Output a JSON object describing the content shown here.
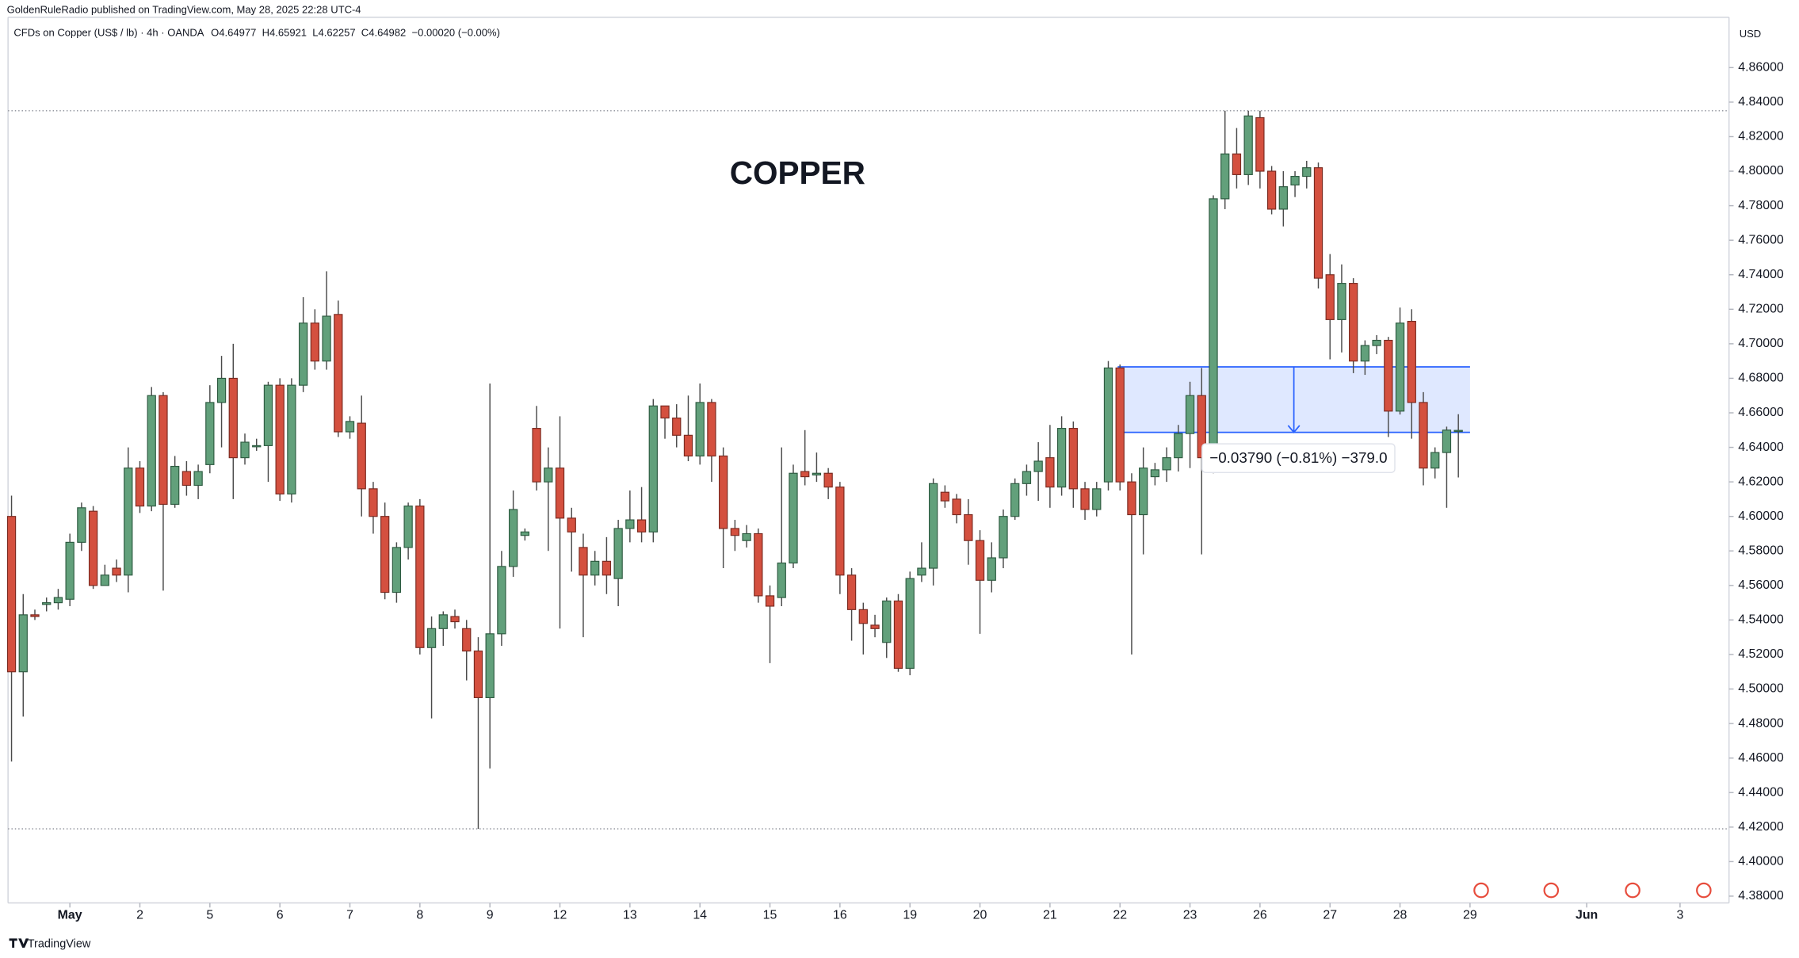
{
  "header": "GoldenRuleRadio published on TradingView.com, May 28, 2025 22:28 UTC-4",
  "footer": "TradingView",
  "chart_data": {
    "type": "candlestick",
    "title": "COPPER",
    "symbol": "CFDs on Copper (US$ / lb) · 4h · OANDA",
    "ohlc_legend": [
      "O4.64977",
      "H4.65921",
      "L4.62257",
      "C4.64982",
      "−0.00020 (−0.00%)"
    ],
    "currency": "USD",
    "up_color": "#62a07b",
    "down_color": "#d4503f",
    "open": [
      4.6,
      4.51,
      4.543,
      4.549,
      4.55,
      4.552,
      4.585,
      4.603,
      4.56,
      4.57,
      4.566,
      4.628,
      4.606,
      4.67,
      4.607,
      4.626,
      4.618,
      4.63,
      4.666,
      4.68,
      4.634,
      4.641,
      4.641,
      4.676,
      4.613,
      4.676,
      4.712,
      4.69,
      4.717,
      4.649,
      4.654,
      4.616,
      4.6,
      4.556,
      4.582,
      4.606,
      4.524,
      4.535,
      4.542,
      4.535,
      4.522,
      4.495,
      4.532,
      4.571,
      4.589,
      4.651,
      4.62,
      4.628,
      4.599,
      4.582,
      4.566,
      4.574,
      4.564,
      4.593,
      4.598,
      4.591,
      4.664,
      4.657,
      4.647,
      4.635,
      4.666,
      4.635,
      4.593,
      4.586,
      4.59,
      4.554,
      4.553,
      4.573,
      4.626,
      4.624,
      4.625,
      4.617,
      4.566,
      4.546,
      4.537,
      4.527,
      4.551,
      4.512,
      4.566,
      4.57,
      4.614,
      4.61,
      4.601,
      4.586,
      4.563,
      4.576,
      4.6,
      4.619,
      4.626,
      4.634,
      4.617,
      4.651,
      4.616,
      4.604,
      4.62,
      4.686,
      4.62,
      4.601,
      4.623,
      4.627,
      4.634,
      4.648,
      4.67,
      4.63,
      4.784,
      4.81,
      4.798,
      4.831,
      4.8,
      4.778,
      4.792,
      4.797,
      4.802,
      4.74,
      4.714,
      4.735,
      4.69,
      4.699,
      4.702,
      4.661,
      4.713,
      4.666,
      4.628,
      4.637,
      4.64977
    ],
    "high": [
      4.612,
      4.555,
      4.546,
      4.553,
      4.558,
      4.59,
      4.608,
      4.606,
      4.572,
      4.575,
      4.64,
      4.632,
      4.675,
      4.672,
      4.635,
      4.632,
      4.63,
      4.676,
      4.693,
      4.7,
      4.648,
      4.645,
      4.678,
      4.68,
      4.68,
      4.727,
      4.72,
      4.742,
      4.725,
      4.658,
      4.67,
      4.62,
      4.608,
      4.585,
      4.608,
      4.61,
      4.542,
      4.545,
      4.546,
      4.54,
      4.53,
      4.677,
      4.58,
      4.615,
      4.593,
      4.664,
      4.64,
      4.658,
      4.605,
      4.59,
      4.58,
      4.588,
      4.598,
      4.615,
      4.617,
      4.668,
      4.662,
      4.665,
      4.67,
      4.677,
      4.668,
      4.64,
      4.598,
      4.595,
      4.593,
      4.56,
      4.64,
      4.63,
      4.65,
      4.637,
      4.628,
      4.62,
      4.57,
      4.55,
      4.543,
      4.553,
      4.555,
      4.568,
      4.585,
      4.622,
      4.618,
      4.613,
      4.61,
      4.592,
      4.585,
      4.604,
      4.622,
      4.63,
      4.643,
      4.653,
      4.658,
      4.655,
      4.62,
      4.62,
      4.69,
      4.688,
      4.625,
      4.64,
      4.631,
      4.64,
      4.653,
      4.678,
      4.686,
      4.786,
      4.835,
      4.825,
      4.835,
      4.835,
      4.803,
      4.8,
      4.8,
      4.806,
      4.805,
      4.752,
      4.746,
      4.738,
      4.702,
      4.705,
      4.704,
      4.721,
      4.72,
      4.672,
      4.64,
      4.652,
      4.65921
    ],
    "low": [
      4.458,
      4.484,
      4.54,
      4.545,
      4.546,
      4.548,
      4.58,
      4.558,
      4.56,
      4.562,
      4.556,
      4.602,
      4.603,
      4.557,
      4.605,
      4.612,
      4.61,
      4.625,
      4.64,
      4.61,
      4.63,
      4.638,
      4.62,
      4.609,
      4.608,
      4.672,
      4.685,
      4.685,
      4.646,
      4.645,
      4.6,
      4.59,
      4.552,
      4.55,
      4.575,
      4.52,
      4.483,
      4.525,
      4.535,
      4.505,
      4.419,
      4.454,
      4.525,
      4.565,
      4.586,
      4.615,
      4.58,
      4.535,
      4.568,
      4.53,
      4.56,
      4.555,
      4.548,
      4.585,
      4.585,
      4.585,
      4.645,
      4.64,
      4.632,
      4.63,
      4.62,
      4.57,
      4.58,
      4.582,
      4.55,
      4.515,
      4.548,
      4.57,
      4.618,
      4.62,
      4.61,
      4.555,
      4.528,
      4.52,
      4.53,
      4.518,
      4.51,
      4.508,
      4.562,
      4.56,
      4.605,
      4.596,
      4.572,
      4.532,
      4.556,
      4.57,
      4.598,
      4.612,
      4.609,
      4.605,
      4.612,
      4.605,
      4.598,
      4.6,
      4.615,
      4.615,
      4.52,
      4.578,
      4.618,
      4.62,
      4.626,
      4.628,
      4.578,
      4.625,
      4.778,
      4.79,
      4.792,
      4.79,
      4.775,
      4.768,
      4.785,
      4.79,
      4.732,
      4.691,
      4.695,
      4.683,
      4.682,
      4.694,
      4.646,
      4.659,
      4.645,
      4.618,
      4.622,
      4.605,
      4.62257
    ],
    "close": [
      4.51,
      4.543,
      4.542,
      4.55,
      4.553,
      4.585,
      4.605,
      4.56,
      4.566,
      4.566,
      4.628,
      4.606,
      4.67,
      4.607,
      4.629,
      4.618,
      4.626,
      4.666,
      4.68,
      4.634,
      4.643,
      4.641,
      4.676,
      4.613,
      4.676,
      4.712,
      4.69,
      4.716,
      4.649,
      4.655,
      4.616,
      4.6,
      4.556,
      4.582,
      4.606,
      4.524,
      4.535,
      4.543,
      4.539,
      4.522,
      4.495,
      4.532,
      4.571,
      4.604,
      4.591,
      4.62,
      4.628,
      4.599,
      4.591,
      4.566,
      4.574,
      4.566,
      4.593,
      4.598,
      4.591,
      4.664,
      4.657,
      4.647,
      4.635,
      4.666,
      4.635,
      4.593,
      4.589,
      4.59,
      4.554,
      4.548,
      4.573,
      4.625,
      4.623,
      4.625,
      4.617,
      4.566,
      4.546,
      4.538,
      4.535,
      4.551,
      4.512,
      4.564,
      4.57,
      4.619,
      4.609,
      4.601,
      4.586,
      4.563,
      4.576,
      4.6,
      4.619,
      4.626,
      4.632,
      4.617,
      4.651,
      4.616,
      4.604,
      4.616,
      4.686,
      4.62,
      4.601,
      4.628,
      4.627,
      4.634,
      4.648,
      4.67,
      4.634,
      4.784,
      4.81,
      4.798,
      4.832,
      4.8,
      4.778,
      4.791,
      4.797,
      4.802,
      4.738,
      4.714,
      4.735,
      4.69,
      4.699,
      4.702,
      4.661,
      4.712,
      4.666,
      4.628,
      4.637,
      4.65,
      4.64982
    ],
    "xlim": [
      -0.3,
      147
    ],
    "xticks": [
      {
        "value": 5,
        "label": "May"
      },
      {
        "value": 11,
        "label": "2"
      },
      {
        "value": 17,
        "label": "5"
      },
      {
        "value": 23,
        "label": "6"
      },
      {
        "value": 29,
        "label": "7"
      },
      {
        "value": 35,
        "label": "8"
      },
      {
        "value": 41,
        "label": "9"
      },
      {
        "value": 47,
        "label": "12"
      },
      {
        "value": 53,
        "label": "13"
      },
      {
        "value": 59,
        "label": "14"
      },
      {
        "value": 65,
        "label": "15"
      },
      {
        "value": 71,
        "label": "16"
      },
      {
        "value": 77,
        "label": "19"
      },
      {
        "value": 83,
        "label": "20"
      },
      {
        "value": 89,
        "label": "21"
      },
      {
        "value": 95,
        "label": "22"
      },
      {
        "value": 101,
        "label": "23"
      },
      {
        "value": 107,
        "label": "26"
      },
      {
        "value": 113,
        "label": "27"
      },
      {
        "value": 119,
        "label": "28"
      },
      {
        "value": 125,
        "label": "29"
      },
      {
        "value": 135,
        "label": "Jun"
      },
      {
        "value": 143,
        "label": "3"
      }
    ],
    "ylim": [
      4.3774,
      4.8892
    ],
    "yticks": [
      {
        "value": 4.38,
        "label": "4.38000"
      },
      {
        "value": 4.4,
        "label": "4.40000"
      },
      {
        "value": 4.42,
        "label": "4.42000"
      },
      {
        "value": 4.44,
        "label": "4.44000"
      },
      {
        "value": 4.46,
        "label": "4.46000"
      },
      {
        "value": 4.48,
        "label": "4.48000"
      },
      {
        "value": 4.5,
        "label": "4.50000"
      },
      {
        "value": 4.52,
        "label": "4.52000"
      },
      {
        "value": 4.54,
        "label": "4.54000"
      },
      {
        "value": 4.56,
        "label": "4.56000"
      },
      {
        "value": 4.58,
        "label": "4.58000"
      },
      {
        "value": 4.6,
        "label": "4.60000"
      },
      {
        "value": 4.62,
        "label": "4.62000"
      },
      {
        "value": 4.64,
        "label": "4.64000"
      },
      {
        "value": 4.66,
        "label": "4.66000"
      },
      {
        "value": 4.68,
        "label": "4.68000"
      },
      {
        "value": 4.7,
        "label": "4.70000"
      },
      {
        "value": 4.72,
        "label": "4.72000"
      },
      {
        "value": 4.74,
        "label": "4.74000"
      },
      {
        "value": 4.76,
        "label": "4.76000"
      },
      {
        "value": 4.78,
        "label": "4.78000"
      },
      {
        "value": 4.8,
        "label": "4.80000"
      },
      {
        "value": 4.82,
        "label": "4.82000"
      },
      {
        "value": 4.84,
        "label": "4.84000"
      },
      {
        "value": 4.86,
        "label": "4.86000"
      }
    ],
    "price_lines": [
      4.835,
      4.419
    ],
    "measure": {
      "from": 4.6866,
      "to": 4.6487,
      "label": "−0.03790 (−0.81%) −379.0"
    }
  }
}
